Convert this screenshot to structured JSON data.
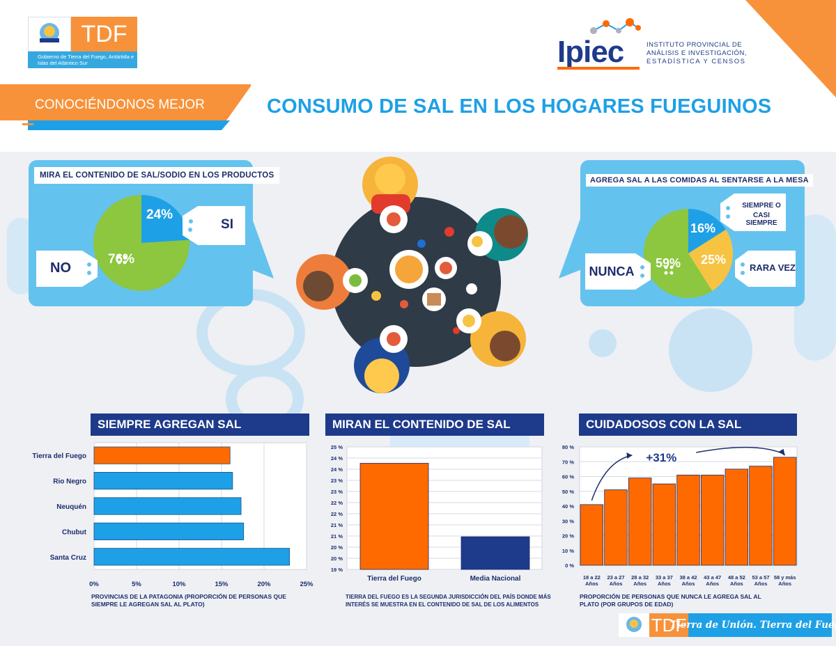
{
  "header": {
    "gov_logo_text": "TDF",
    "gov_caption": "Gobierno de Tierra del Fuego, Antártida e Islas del Atlántico Sur",
    "ipiec_logo_text": "Ipiec",
    "ipiec_caption_1": "INSTITUTO PROVINCIAL DE",
    "ipiec_caption_2": "ANÁLISIS E INVESTIGACIÓN,",
    "ipiec_caption_3": "ESTADÍSTICA Y CENSOS",
    "section_tag": "CONOCIÉNDONOS MEJOR",
    "title": "CONSUMO DE SAL EN LOS HOGARES FUEGUINOS"
  },
  "colors": {
    "orange": "#ff6a00",
    "blue": "#1ea0e6",
    "navy": "#1e3a8a",
    "green": "#8dc63f",
    "yellow": "#f6c343",
    "panel": "#64c2ee"
  },
  "pie_left": {
    "title": "MIRA EL CONTENIDO DE SAL/SODIO EN LOS PRODUCTOS",
    "si_label": "SI",
    "no_label": "NO",
    "si_pct": "24%",
    "no_pct": "76%"
  },
  "pie_right": {
    "title": "AGREGA SAL A LAS COMIDAS AL SENTARSE A LA MESA",
    "siempre_label_1": "SIEMPRE O",
    "siempre_label_2": "CASI SIEMPRE",
    "rara_label": "RARA VEZ",
    "nunca_label": "NUNCA",
    "siempre_pct": "16%",
    "rara_pct": "25%",
    "nunca_pct": "59%"
  },
  "chart_data": [
    {
      "type": "pie",
      "title": "MIRA EL CONTENIDO DE SAL/SODIO EN LOS PRODUCTOS",
      "categories": [
        "SI",
        "NO"
      ],
      "values": [
        24,
        76
      ]
    },
    {
      "type": "pie",
      "title": "AGREGA SAL A LAS COMIDAS AL SENTARSE A LA MESA",
      "categories": [
        "SIEMPRE O CASI SIEMPRE",
        "RARA VEZ",
        "NUNCA"
      ],
      "values": [
        16,
        25,
        59
      ]
    },
    {
      "type": "bar",
      "orientation": "horizontal",
      "title": "SIEMPRE AGREGAN SAL",
      "categories": [
        "Tierra del Fuego",
        "Rio Negro",
        "Neuquén",
        "Chubut",
        "Santa Cruz"
      ],
      "values": [
        16,
        16.3,
        17.3,
        17.6,
        23
      ],
      "xlim": [
        0,
        25
      ],
      "ticks": [
        "0%",
        "5%",
        "10%",
        "15%",
        "20%",
        "25%"
      ],
      "caption": "PROVINCIAS DE LA PATAGONIA (PROPORCIÓN DE PERSONAS QUE SIEMPRE LE AGREGAN SAL AL PLATO)",
      "grid": true
    },
    {
      "type": "bar",
      "title": "MIRAN EL CONTENIDO DE SAL",
      "categories": [
        "Tierra del Fuego",
        "Media Nacional"
      ],
      "values": [
        24.2,
        20.6
      ],
      "ylim": [
        19,
        25
      ],
      "ticks": [
        "19 %",
        "20 %",
        "20 %",
        "21 %",
        "21 %",
        "22 %",
        "22 %",
        "23 %",
        "23 %",
        "24 %",
        "24 %",
        "25 %"
      ],
      "caption": "TIERRA DEL FUEGO ES LA SEGUNDA JURISDICCIÓN DEL PAÍS DONDE MÁS INTERÉS SE MUESTRA EN EL CONTENIDO DE SAL DE LOS ALIMENTOS",
      "grid": true
    },
    {
      "type": "bar",
      "title": "CUIDADOSOS CON LA SAL",
      "categories": [
        [
          "18 a 22",
          "Años"
        ],
        [
          "23 a 27",
          "Años"
        ],
        [
          "28 a 32",
          "Años"
        ],
        [
          "33 a 37",
          "Años"
        ],
        [
          "38 a 42",
          "Años"
        ],
        [
          "43 a 47",
          "Años"
        ],
        [
          "48 a 52",
          "Años"
        ],
        [
          "53 a 57",
          "Años"
        ],
        [
          "58 y más",
          "Años"
        ]
      ],
      "values": [
        41,
        51,
        59,
        55,
        61,
        61,
        65,
        67,
        73
      ],
      "ylim": [
        0,
        80
      ],
      "ticks": [
        "0 %",
        "10 %",
        "20 %",
        "30 %",
        "40 %",
        "50 %",
        "60 %",
        "70 %",
        "80 %"
      ],
      "annotation": "+31%",
      "caption": "PROPORCIÓN DE PERSONAS QUE NUNCA LE AGREGA SAL AL PLATO (POR GRUPOS DE EDAD)",
      "grid": true
    }
  ],
  "footer": {
    "logo_text": "TDF",
    "slogan": "Tierra de Unión. Tierra del Fuego."
  }
}
